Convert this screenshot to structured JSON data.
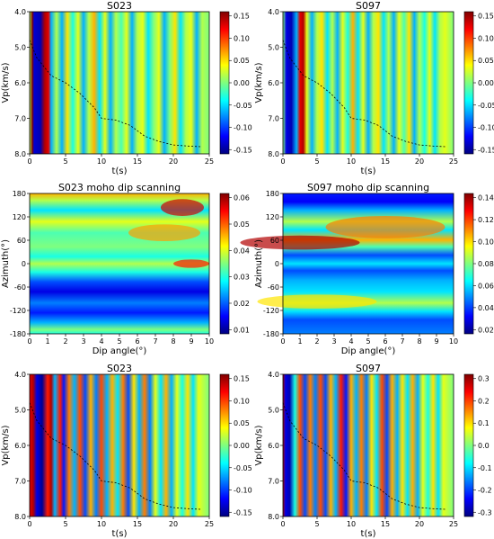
{
  "chart_data": [
    {
      "type": "heatmap",
      "title": "S023",
      "xlabel": "t(s)",
      "ylabel": "Vp(km/s)",
      "x_ticks": [
        "0",
        "5",
        "10",
        "15",
        "20",
        "25"
      ],
      "y_ticks": [
        "4.0",
        "5.0",
        "6.0",
        "7.0",
        "8.0"
      ],
      "xlim": [
        0,
        25
      ],
      "ylim": [
        4.0,
        8.0
      ],
      "y_inverted": true,
      "colorbar": {
        "ticks": [
          "0.15",
          "0.10",
          "0.05",
          "0.00",
          "-0.05",
          "-0.10",
          "-0.15"
        ],
        "range": [
          -0.15,
          0.15
        ]
      },
      "moveout_curve_dashed": {
        "t": [
          0,
          1,
          3,
          5,
          7,
          9,
          10,
          12,
          14,
          16,
          18,
          20,
          22,
          24
        ],
        "vp": [
          4.8,
          5.3,
          5.8,
          6.0,
          6.3,
          6.7,
          7.0,
          7.05,
          7.2,
          7.5,
          7.65,
          7.75,
          7.78,
          7.8
        ]
      }
    },
    {
      "type": "heatmap",
      "title": "S097",
      "xlabel": "t(s)",
      "ylabel": "Vp(km/s)",
      "x_ticks": [
        "0",
        "5",
        "10",
        "15",
        "20",
        "25"
      ],
      "y_ticks": [
        "4.0",
        "5.0",
        "6.0",
        "7.0",
        "8.0"
      ],
      "xlim": [
        0,
        25
      ],
      "ylim": [
        4.0,
        8.0
      ],
      "y_inverted": true,
      "colorbar": {
        "ticks": [
          "0.15",
          "0.10",
          "0.05",
          "0.00",
          "-0.05",
          "-0.10",
          "-0.15"
        ],
        "range": [
          -0.15,
          0.15
        ]
      },
      "moveout_curve_dashed": {
        "t": [
          0,
          1,
          3,
          5,
          7,
          9,
          10,
          12,
          14,
          16,
          18,
          20,
          22,
          24
        ],
        "vp": [
          4.8,
          5.3,
          5.8,
          6.0,
          6.3,
          6.7,
          7.0,
          7.05,
          7.2,
          7.5,
          7.65,
          7.75,
          7.78,
          7.8
        ]
      }
    },
    {
      "type": "heatmap",
      "title": "S023 moho dip scanning",
      "xlabel": "Dip angle(°)",
      "ylabel": "Azimuth(°)",
      "x_ticks": [
        "0",
        "1",
        "2",
        "3",
        "4",
        "5",
        "6",
        "7",
        "8",
        "9",
        "10"
      ],
      "y_ticks": [
        "180",
        "120",
        "60",
        "0",
        "-60",
        "-120",
        "-180"
      ],
      "xlim": [
        0,
        10
      ],
      "ylim": [
        -180,
        180
      ],
      "colorbar": {
        "ticks": [
          "0.06",
          "0.05",
          "0.04",
          "0.03",
          "0.02",
          "0.01"
        ],
        "range": [
          0.01,
          0.062
        ]
      }
    },
    {
      "type": "heatmap",
      "title": "S097 moho dip scanning",
      "xlabel": "Dip angle(°)",
      "ylabel": "Azimuth(°)",
      "x_ticks": [
        "0",
        "1",
        "2",
        "3",
        "4",
        "5",
        "6",
        "7",
        "8",
        "9",
        "10"
      ],
      "y_ticks": [
        "180",
        "120",
        "60",
        "0",
        "-60",
        "-120",
        "-180"
      ],
      "xlim": [
        0,
        10
      ],
      "ylim": [
        -180,
        180
      ],
      "colorbar": {
        "ticks": [
          "0.14",
          "0.12",
          "0.10",
          "0.08",
          "0.06",
          "0.04",
          "0.02"
        ],
        "range": [
          0.01,
          0.145
        ]
      }
    },
    {
      "type": "heatmap",
      "title": "S023",
      "xlabel": "t(s)",
      "ylabel": "Vp(km/s)",
      "x_ticks": [
        "0",
        "5",
        "10",
        "15",
        "20",
        "25"
      ],
      "y_ticks": [
        "4.0",
        "5.0",
        "6.0",
        "7.0",
        "8.0"
      ],
      "xlim": [
        0,
        25
      ],
      "ylim": [
        4.0,
        8.0
      ],
      "y_inverted": true,
      "colorbar": {
        "ticks": [
          "0.15",
          "0.10",
          "0.05",
          "0.00",
          "-0.05",
          "-0.10",
          "-0.15"
        ],
        "range": [
          -0.15,
          0.15
        ]
      },
      "moveout_curve_dashed": {
        "t": [
          0,
          1,
          3,
          5,
          7,
          9,
          10,
          12,
          14,
          16,
          18,
          20,
          22,
          24
        ],
        "vp": [
          4.8,
          5.3,
          5.8,
          6.0,
          6.3,
          6.7,
          7.0,
          7.05,
          7.2,
          7.5,
          7.65,
          7.75,
          7.78,
          7.8
        ]
      }
    },
    {
      "type": "heatmap",
      "title": "S097",
      "xlabel": "t(s)",
      "ylabel": "Vp(km/s)",
      "x_ticks": [
        "0",
        "5",
        "10",
        "15",
        "20",
        "25"
      ],
      "y_ticks": [
        "4.0",
        "5.0",
        "6.0",
        "7.0",
        "8.0"
      ],
      "xlim": [
        0,
        25
      ],
      "ylim": [
        4.0,
        8.0
      ],
      "y_inverted": true,
      "colorbar": {
        "ticks": [
          "0.3",
          "0.2",
          "0.1",
          "0.0",
          "-0.1",
          "-0.2",
          "-0.3"
        ],
        "range": [
          -0.3,
          0.3
        ]
      },
      "moveout_curve_dashed": {
        "t": [
          0,
          1,
          3,
          5,
          7,
          9,
          10,
          12,
          14,
          16,
          18,
          20,
          22,
          24
        ],
        "vp": [
          4.8,
          5.3,
          5.8,
          6.0,
          6.3,
          6.7,
          7.0,
          7.05,
          7.2,
          7.5,
          7.65,
          7.75,
          7.78,
          7.8
        ]
      }
    }
  ],
  "colormap": [
    "#00007f",
    "#0000ff",
    "#007fff",
    "#00ffff",
    "#7fff7f",
    "#ffff00",
    "#ff7f00",
    "#ff0000",
    "#7f0000"
  ]
}
